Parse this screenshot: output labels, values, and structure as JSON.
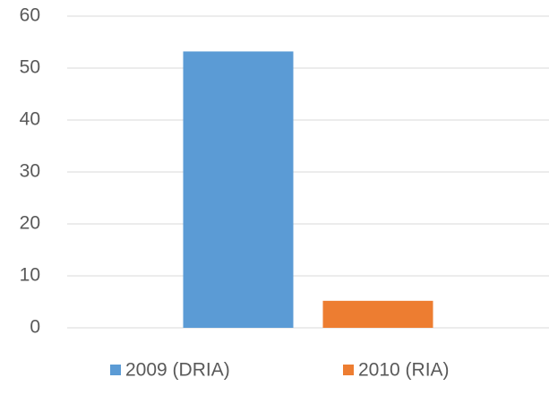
{
  "chart_data": {
    "type": "bar",
    "categories": [
      null
    ],
    "series": [
      {
        "name": "2009 (DRIA)",
        "color": "#5b9bd5",
        "values": [
          53.2
        ]
      },
      {
        "name": "2010 (RIA)",
        "color": "#ed7d31",
        "values": [
          5.2
        ]
      }
    ],
    "ylim": [
      0,
      60
    ],
    "yticks": [
      0,
      10,
      20,
      30,
      40,
      50,
      60
    ],
    "grid": true,
    "legend": "bottom"
  }
}
